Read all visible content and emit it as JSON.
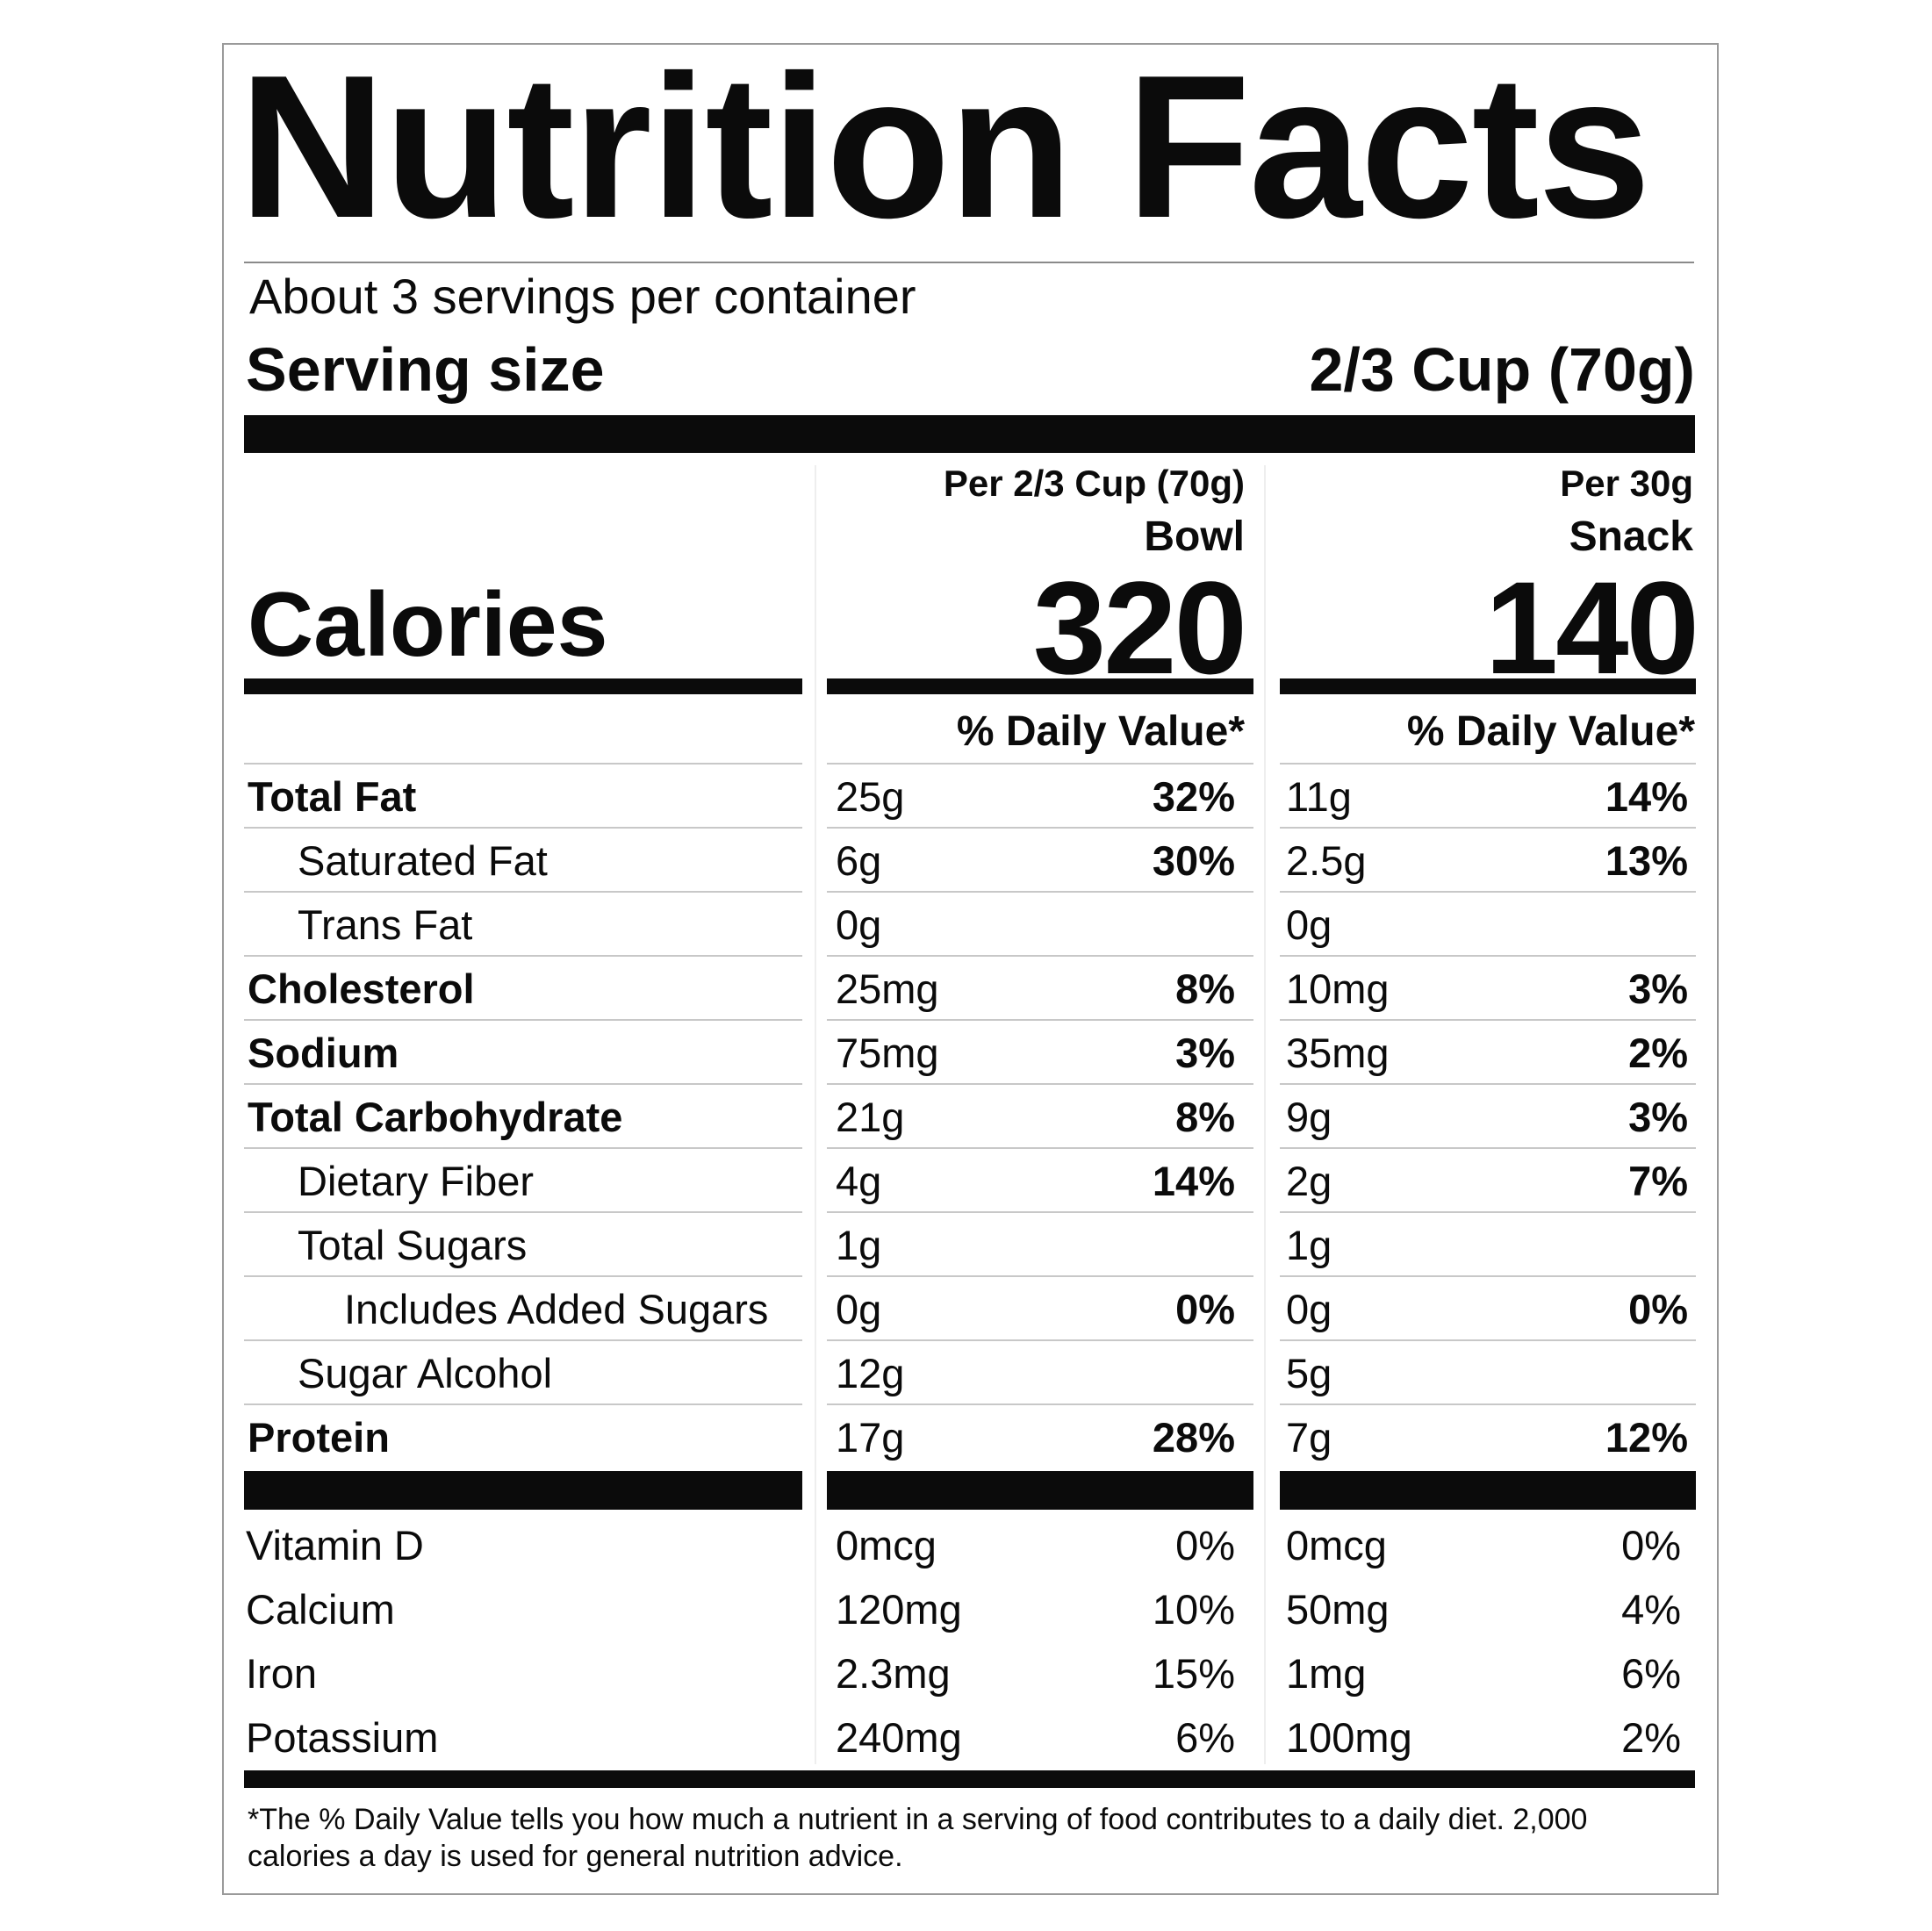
{
  "title": "Nutrition Facts",
  "servings_per_container": "About 3 servings per container",
  "serving_size": {
    "label": "Serving size",
    "value": "2/3 Cup (70g)"
  },
  "calories_label": "Calories",
  "columns": [
    {
      "per": "Per 2/3 Cup (70g)",
      "name": "Bowl",
      "calories": "320",
      "dv_header": "% Daily Value*"
    },
    {
      "per": "Per 30g",
      "name": "Snack",
      "calories": "140",
      "dv_header": "% Daily Value*"
    }
  ],
  "nutrients": [
    {
      "name": "Total Fat",
      "bold": true,
      "indent": 0,
      "bowl": "25g",
      "bowl_dv": "32%",
      "snack": "11g",
      "snack_dv": "14%"
    },
    {
      "name": "Saturated Fat",
      "bold": false,
      "indent": 1,
      "bowl": "6g",
      "bowl_dv": "30%",
      "snack": "2.5g",
      "snack_dv": "13%"
    },
    {
      "name": "Trans Fat",
      "bold": false,
      "indent": 1,
      "bowl": "0g",
      "bowl_dv": "",
      "snack": "0g",
      "snack_dv": ""
    },
    {
      "name": "Cholesterol",
      "bold": true,
      "indent": 0,
      "bowl": "25mg",
      "bowl_dv": "8%",
      "snack": "10mg",
      "snack_dv": "3%"
    },
    {
      "name": "Sodium",
      "bold": true,
      "indent": 0,
      "bowl": "75mg",
      "bowl_dv": "3%",
      "snack": "35mg",
      "snack_dv": "2%"
    },
    {
      "name": "Total Carbohydrate",
      "bold": true,
      "indent": 0,
      "bowl": "21g",
      "bowl_dv": "8%",
      "snack": "9g",
      "snack_dv": "3%"
    },
    {
      "name": "Dietary Fiber",
      "bold": false,
      "indent": 1,
      "bowl": "4g",
      "bowl_dv": "14%",
      "snack": "2g",
      "snack_dv": "7%"
    },
    {
      "name": "Total Sugars",
      "bold": false,
      "indent": 1,
      "bowl": "1g",
      "bowl_dv": "",
      "snack": "1g",
      "snack_dv": ""
    },
    {
      "name": "Includes Added Sugars",
      "bold": false,
      "indent": 2,
      "bowl": "0g",
      "bowl_dv": "0%",
      "snack": "0g",
      "snack_dv": "0%"
    },
    {
      "name": "Sugar Alcohol",
      "bold": false,
      "indent": 1,
      "bowl": "12g",
      "bowl_dv": "",
      "snack": "5g",
      "snack_dv": ""
    },
    {
      "name": "Protein",
      "bold": true,
      "indent": 0,
      "bowl": "17g",
      "bowl_dv": "28%",
      "snack": "7g",
      "snack_dv": "12%"
    }
  ],
  "vitamins": [
    {
      "name": "Vitamin D",
      "bowl": "0mcg",
      "bowl_dv": "0%",
      "snack": "0mcg",
      "snack_dv": "0%"
    },
    {
      "name": "Calcium",
      "bowl": "120mg",
      "bowl_dv": "10%",
      "snack": "50mg",
      "snack_dv": "4%"
    },
    {
      "name": "Iron",
      "bowl": "2.3mg",
      "bowl_dv": "15%",
      "snack": "1mg",
      "snack_dv": "6%"
    },
    {
      "name": "Potassium",
      "bowl": "240mg",
      "bowl_dv": "6%",
      "snack": "100mg",
      "snack_dv": "2%"
    }
  ],
  "footnote": "*The % Daily Value tells you how much a nutrient in a serving of food contributes to a daily diet. 2,000 calories a day is used for general nutrition advice."
}
